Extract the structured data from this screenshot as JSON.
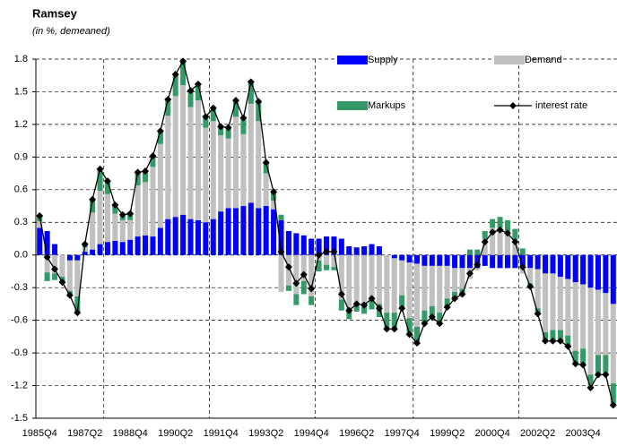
{
  "chart_data": {
    "type": "bar",
    "stacked": true,
    "title": "Ramsey",
    "subtitle": "(in %, demeaned)",
    "grid": true,
    "categories": [
      "1985Q4",
      null,
      null,
      null,
      null,
      null,
      "1987Q2",
      null,
      null,
      null,
      null,
      null,
      "1988Q4",
      null,
      null,
      null,
      null,
      null,
      "1990Q2",
      null,
      null,
      null,
      null,
      null,
      "1991Q4",
      null,
      null,
      null,
      null,
      null,
      "1993Q2",
      null,
      null,
      null,
      null,
      null,
      "1994Q4",
      null,
      null,
      null,
      null,
      null,
      "1996Q2",
      null,
      null,
      null,
      null,
      null,
      "1997Q4",
      null,
      null,
      null,
      null,
      null,
      "1999Q2",
      null,
      null,
      null,
      null,
      null,
      "2000Q4",
      null,
      null,
      null,
      null,
      null,
      "2002Q2",
      null,
      null,
      null,
      null,
      null,
      "2003Q4",
      null,
      null,
      null,
      null
    ],
    "ylim": [
      -1.5,
      1.8
    ],
    "yticks": [
      {
        "value": -1.5,
        "label": "-1.5"
      },
      {
        "value": -1.2,
        "label": "-1.2"
      },
      {
        "value": -0.9,
        "label": "-0.9"
      },
      {
        "value": -0.6,
        "label": "-0.6"
      },
      {
        "value": -0.3,
        "label": "-0.3"
      },
      {
        "value": 0,
        "label": "0.0"
      },
      {
        "value": 0.3,
        "label": "0.3"
      },
      {
        "value": 0.6,
        "label": "0.6"
      },
      {
        "value": 0.9,
        "label": "0.9"
      },
      {
        "value": 1.2,
        "label": "1.2"
      },
      {
        "value": 1.5,
        "label": "1.5"
      },
      {
        "value": 1.8,
        "label": "1.8"
      }
    ],
    "series": [
      {
        "name": "Supply",
        "type": "bar",
        "color": "#0000ff",
        "values": [
          0.25,
          0.22,
          0.1,
          0.0,
          -0.05,
          -0.05,
          0.03,
          0.05,
          0.1,
          0.12,
          0.13,
          0.12,
          0.14,
          0.17,
          0.18,
          0.17,
          0.25,
          0.33,
          0.35,
          0.37,
          0.33,
          0.32,
          0.3,
          0.33,
          0.4,
          0.43,
          0.43,
          0.45,
          0.48,
          0.43,
          0.45,
          0.42,
          0.32,
          0.22,
          0.2,
          0.18,
          0.15,
          0.15,
          0.17,
          0.17,
          0.15,
          0.08,
          0.07,
          0.08,
          0.1,
          0.08,
          0.0,
          -0.03,
          -0.05,
          -0.07,
          -0.08,
          -0.1,
          -0.1,
          -0.1,
          -0.1,
          -0.12,
          -0.12,
          -0.12,
          -0.12,
          -0.1,
          -0.12,
          -0.12,
          -0.12,
          -0.12,
          -0.1,
          -0.12,
          -0.13,
          -0.17,
          -0.17,
          -0.2,
          -0.22,
          -0.25,
          -0.27,
          -0.3,
          -0.32,
          -0.35,
          -0.45
        ]
      },
      {
        "name": "Demand",
        "type": "bar",
        "color": "#c0c0c0",
        "values": [
          0.06,
          -0.16,
          -0.17,
          -0.2,
          -0.28,
          -0.33,
          0.04,
          0.34,
          0.49,
          0.44,
          0.25,
          0.2,
          0.18,
          0.47,
          0.49,
          0.64,
          0.77,
          0.95,
          1.11,
          1.19,
          1.03,
          1.1,
          0.87,
          0.9,
          0.7,
          0.64,
          0.84,
          0.66,
          0.91,
          0.8,
          0.3,
          0.08,
          -0.34,
          -0.28,
          -0.36,
          -0.24,
          -0.38,
          -0.05,
          -0.09,
          -0.11,
          -0.41,
          -0.49,
          -0.44,
          -0.44,
          -0.42,
          -0.45,
          -0.53,
          -0.5,
          -0.32,
          -0.51,
          -0.58,
          -0.41,
          -0.37,
          -0.43,
          -0.3,
          -0.22,
          -0.19,
          -0.1,
          -0.02,
          0.15,
          0.25,
          0.25,
          0.22,
          0.14,
          -0.07,
          -0.14,
          -0.36,
          -0.54,
          -0.52,
          -0.49,
          -0.52,
          -0.63,
          -0.59,
          -0.8,
          -0.6,
          -0.57,
          -0.73
        ]
      },
      {
        "name": "Markups",
        "type": "bar",
        "color": "#339966",
        "values": [
          0.05,
          -0.08,
          -0.06,
          -0.05,
          -0.04,
          -0.15,
          0.03,
          0.12,
          0.2,
          0.12,
          0.08,
          0.05,
          0.06,
          0.12,
          0.1,
          0.1,
          0.12,
          0.15,
          0.2,
          0.22,
          0.15,
          0.15,
          0.1,
          0.12,
          0.08,
          0.1,
          0.15,
          0.15,
          0.2,
          0.18,
          0.1,
          0.08,
          0.05,
          -0.05,
          -0.1,
          -0.12,
          -0.08,
          -0.1,
          -0.05,
          -0.03,
          -0.1,
          -0.1,
          -0.08,
          -0.1,
          -0.08,
          -0.12,
          -0.15,
          -0.15,
          -0.12,
          -0.15,
          -0.15,
          -0.12,
          -0.1,
          -0.1,
          -0.08,
          -0.06,
          -0.05,
          0.05,
          0.05,
          0.07,
          0.08,
          0.1,
          0.1,
          0.1,
          0.06,
          -0.03,
          -0.05,
          -0.08,
          -0.1,
          -0.1,
          -0.1,
          -0.12,
          -0.15,
          -0.12,
          -0.18,
          -0.18,
          -0.2
        ]
      },
      {
        "name": "interest rate",
        "type": "line",
        "color": "#000000",
        "values": [
          0.36,
          -0.02,
          -0.13,
          -0.25,
          -0.37,
          -0.53,
          0.1,
          0.51,
          0.79,
          0.68,
          0.46,
          0.37,
          0.38,
          0.76,
          0.77,
          0.91,
          1.14,
          1.43,
          1.66,
          1.78,
          1.51,
          1.57,
          1.27,
          1.35,
          1.18,
          1.17,
          1.42,
          1.26,
          1.59,
          1.41,
          0.85,
          0.58,
          0.03,
          -0.11,
          -0.26,
          -0.18,
          -0.31,
          0.0,
          0.03,
          0.03,
          -0.36,
          -0.51,
          -0.45,
          -0.46,
          -0.4,
          -0.49,
          -0.68,
          -0.68,
          -0.49,
          -0.73,
          -0.81,
          -0.63,
          -0.57,
          -0.63,
          -0.48,
          -0.4,
          -0.36,
          -0.17,
          -0.09,
          0.12,
          0.21,
          0.23,
          0.2,
          0.12,
          -0.11,
          -0.29,
          -0.54,
          -0.79,
          -0.79,
          -0.79,
          -0.84,
          -1.0,
          -1.01,
          -1.22,
          -1.1,
          -1.1,
          -1.38
        ]
      }
    ]
  }
}
